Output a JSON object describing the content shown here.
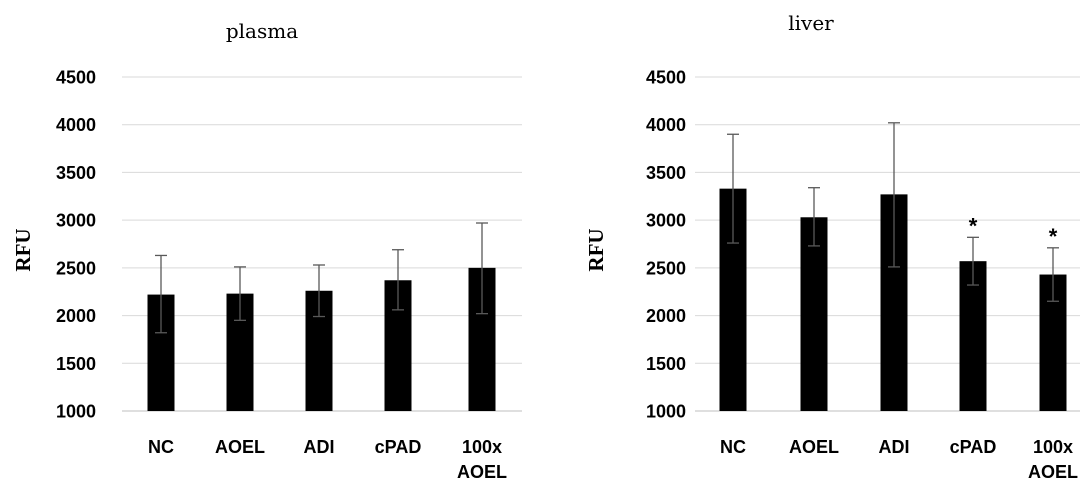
{
  "chart_data": [
    {
      "type": "bar",
      "title": "plasma",
      "ylabel": "RFU",
      "xlabel": "",
      "ylim": [
        1000,
        4500
      ],
      "yticks": [
        1000,
        1500,
        2000,
        2500,
        3000,
        3500,
        4000,
        4500
      ],
      "grid": true,
      "categories": [
        [
          "NC"
        ],
        [
          "AOEL"
        ],
        [
          "ADI"
        ],
        [
          "cPAD"
        ],
        [
          "100x",
          "AOEL"
        ]
      ],
      "values": [
        2220,
        2230,
        2260,
        2370,
        2500
      ],
      "error_low": [
        1820,
        1950,
        1990,
        2060,
        2020
      ],
      "error_high": [
        2630,
        2510,
        2530,
        2690,
        2970
      ],
      "significance": [
        "",
        "",
        "",
        "",
        ""
      ]
    },
    {
      "type": "bar",
      "title": "liver",
      "ylabel": "RFU",
      "xlabel": "",
      "ylim": [
        1000,
        4500
      ],
      "yticks": [
        1000,
        1500,
        2000,
        2500,
        3000,
        3500,
        4000,
        4500
      ],
      "grid": true,
      "categories": [
        [
          "NC"
        ],
        [
          "AOEL"
        ],
        [
          "ADI"
        ],
        [
          "cPAD"
        ],
        [
          "100x",
          "AOEL"
        ]
      ],
      "values": [
        3330,
        3030,
        3270,
        2570,
        2430
      ],
      "error_low": [
        2760,
        2730,
        2510,
        2320,
        2150
      ],
      "error_high": [
        3900,
        3340,
        4020,
        2820,
        2710
      ],
      "significance": [
        "",
        "",
        "",
        "*",
        "*"
      ]
    }
  ]
}
